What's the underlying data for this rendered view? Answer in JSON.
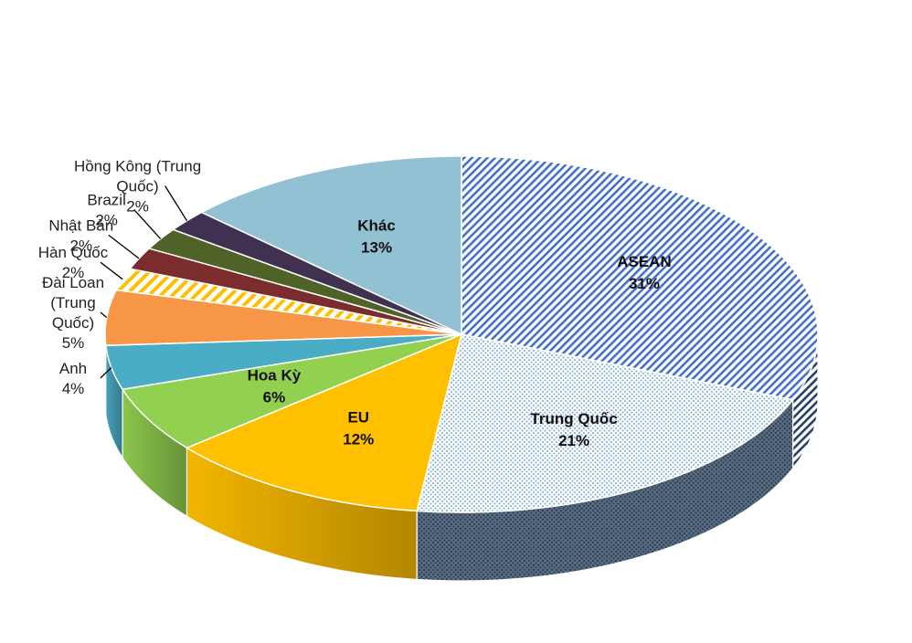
{
  "chart_data": {
    "type": "pie",
    "title": "",
    "slices": [
      {
        "name": "ASEAN",
        "value": 31,
        "value_label": "31%",
        "color": "#4472C4",
        "pattern": "diagonal-dense",
        "label_style": "inside"
      },
      {
        "name": "Trung Quốc",
        "value": 21,
        "value_label": "21%",
        "color": "#BDD7EE",
        "pattern": "dots",
        "label_style": "inside"
      },
      {
        "name": "EU",
        "value": 12,
        "value_label": "12%",
        "color": "#FFC000",
        "pattern": "solid",
        "label_style": "inside"
      },
      {
        "name": "Hoa Kỳ",
        "value": 6,
        "value_label": "6%",
        "color": "#92D050",
        "pattern": "solid",
        "label_style": "inside"
      },
      {
        "name": "Anh",
        "value": 4,
        "value_label": "4%",
        "color": "#4BACC6",
        "pattern": "solid",
        "label_style": "outside",
        "label_lines": [
          "Anh",
          "4%"
        ]
      },
      {
        "name": "Đài Loan (Trung Quốc)",
        "value": 5,
        "value_label": "5%",
        "color": "#F79646",
        "pattern": "solid",
        "label_style": "outside",
        "label_lines": [
          "Đài Loan",
          "(Trung",
          "Quốc)",
          "5%"
        ]
      },
      {
        "name": "Hàn Quốc",
        "value": 2,
        "value_label": "2%",
        "color": "#FFC000",
        "pattern": "diagonal-wide",
        "label_style": "outside",
        "label_lines": [
          "Hàn Quốc",
          "2%"
        ]
      },
      {
        "name": "Nhật Bản",
        "value": 2,
        "value_label": "2%",
        "color": "#7B2C2C",
        "pattern": "solid",
        "label_style": "outside",
        "label_lines": [
          "Nhật Bản",
          "2%"
        ]
      },
      {
        "name": "Brazil",
        "value": 2,
        "value_label": "2%",
        "color": "#4F6228",
        "pattern": "solid",
        "label_style": "outside",
        "label_lines": [
          "Brazil",
          "2%"
        ]
      },
      {
        "name": "Hồng Kông (Trung Quốc)",
        "value": 2,
        "value_label": "2%",
        "color": "#403151",
        "pattern": "solid",
        "label_style": "outside",
        "label_lines": [
          "Hồng Kông (Trung",
          "Quốc)",
          "2%"
        ]
      },
      {
        "name": "Khác",
        "value": 13,
        "value_label": "13%",
        "color": "#92C1D3",
        "pattern": "solid",
        "label_style": "inside"
      }
    ],
    "start_angle_deg": 0,
    "direction": "clockwise",
    "rendering": "3d",
    "legend": "none"
  }
}
